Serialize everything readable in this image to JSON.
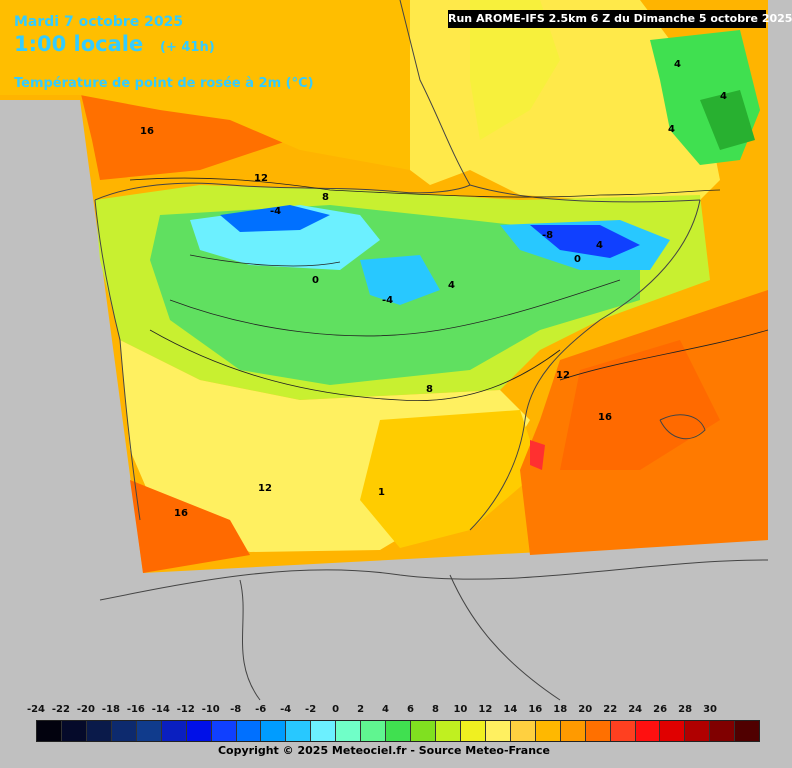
{
  "header": {
    "date": "Mardi 7 octobre 2025",
    "time": "1:00 locale",
    "offset": "(+ 41h)",
    "parameter": "Température de point de rosée à 2m (°C)"
  },
  "run_info": "Run AROME-IFS 2.5km 6 Z du Dimanche 5 octobre 2025",
  "contour_labels": [
    {
      "text": "16"
    },
    {
      "text": "12"
    },
    {
      "text": "8"
    },
    {
      "text": "-4"
    },
    {
      "text": "0"
    },
    {
      "text": "-4"
    },
    {
      "text": "4"
    },
    {
      "text": "-8"
    },
    {
      "text": "4"
    },
    {
      "text": "0"
    },
    {
      "text": "4"
    },
    {
      "text": "4"
    },
    {
      "text": "4"
    },
    {
      "text": "12"
    },
    {
      "text": "8"
    },
    {
      "text": "16"
    },
    {
      "text": "12"
    },
    {
      "text": "16"
    },
    {
      "text": "1"
    }
  ],
  "legend": {
    "labels": [
      "-24",
      "-22",
      "-20",
      "-18",
      "-16",
      "-14",
      "-12",
      "-10",
      "-8",
      "-6",
      "-4",
      "-2",
      "0",
      "2",
      "4",
      "6",
      "8",
      "10",
      "12",
      "14",
      "16",
      "18",
      "20",
      "22",
      "24",
      "26",
      "28",
      "30"
    ],
    "colors": [
      "#02020e",
      "#050a2a",
      "#0a1a4a",
      "#0d2a6e",
      "#103b8c",
      "#0a1fc0",
      "#0010e8",
      "#1040ff",
      "#0070ff",
      "#009cff",
      "#28c8ff",
      "#6cf0ff",
      "#70ffc8",
      "#60f590",
      "#40e050",
      "#80e020",
      "#c0f020",
      "#f0f020",
      "#fff060",
      "#ffd040",
      "#ffb800",
      "#ff9a00",
      "#ff7000",
      "#ff4020",
      "#ff1010",
      "#e00000",
      "#b00000",
      "#800000",
      "#500000"
    ]
  },
  "copyright": "Copyright © 2025 Meteociel.fr - Source Meteo-France"
}
